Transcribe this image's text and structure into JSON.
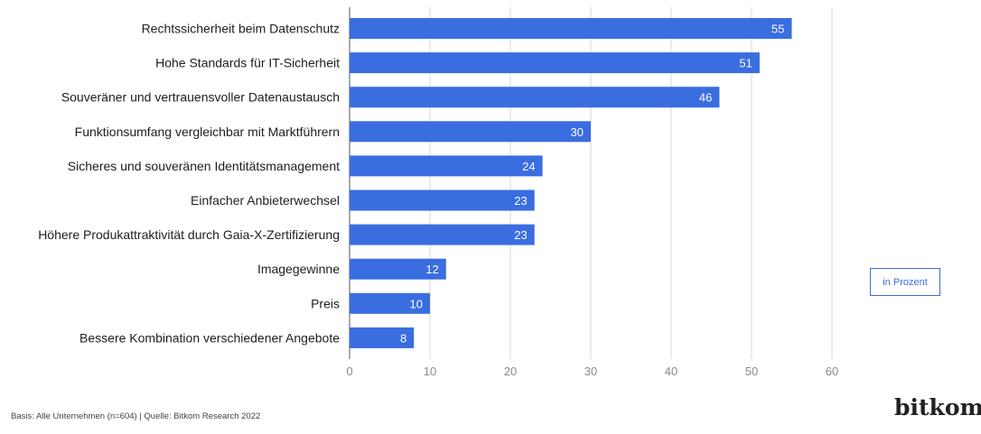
{
  "chart_data": {
    "type": "bar",
    "orientation": "horizontal",
    "categories": [
      "Rechtssicherheit beim Datenschutz",
      "Hohe Standards für IT-Sicherheit",
      "Souveräner und vertrauensvoller Datenaustausch",
      "Funktionsumfang vergleichbar mit Marktführern",
      "Sicheres und souveränen Identitätsmanagement",
      "Einfacher Anbieterwechsel",
      "Höhere Produkattraktivität durch Gaia-X-Zertifizierung",
      "Imagegewinne",
      "Preis",
      "Bessere Kombination verschiedener Angebote"
    ],
    "values": [
      55,
      51,
      46,
      30,
      24,
      23,
      23,
      12,
      10,
      8
    ],
    "xlim": [
      0,
      60
    ],
    "xticks": [
      0,
      10,
      20,
      30,
      40,
      50,
      60
    ],
    "grid": true,
    "bar_color": "#3a6de0",
    "unit_label": "in Prozent"
  },
  "footnote": "Basis: Alle Unternehmen (n=604) | Quelle: Bitkom Research 2022",
  "logo_text": "bitkom"
}
